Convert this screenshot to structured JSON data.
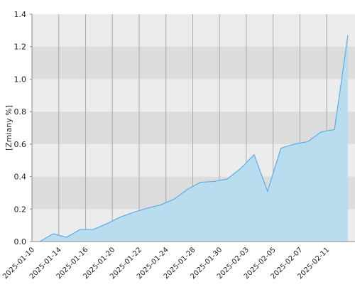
{
  "chart_data": {
    "type": "area",
    "y_label": "[Zmiany %]",
    "categories": [
      "2025-01-10",
      null,
      "2025-01-14",
      null,
      "2025-01-16",
      null,
      "2025-01-20",
      null,
      "2025-01-22",
      null,
      "2025-01-24",
      null,
      "2025-01-28",
      null,
      "2025-01-30",
      null,
      "2025-02-03",
      null,
      "2025-02-05",
      null,
      "2025-02-07",
      null,
      "2025-02-11",
      null
    ],
    "values": [
      0,
      0.048,
      0.026,
      0.074,
      0.074,
      0.11,
      0.15,
      0.18,
      0.205,
      0.225,
      0.26,
      0.32,
      0.365,
      0.37,
      0.385,
      0.45,
      0.535,
      0.31,
      0.575,
      0.6,
      0.615,
      0.675,
      0.69,
      1.27
    ],
    "color": "#5aaee6",
    "ylim": [
      0,
      1.4
    ],
    "yticks": [
      {
        "value": 0,
        "label": "0.0"
      },
      0.2,
      0.4,
      0.6,
      0.8,
      {
        "value": 1,
        "label": "1.0"
      },
      1.2,
      1.4
    ],
    "grid": true
  }
}
